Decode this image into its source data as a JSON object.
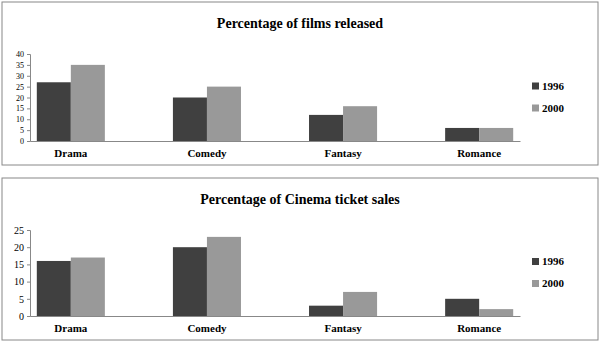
{
  "chart_data": [
    {
      "type": "bar",
      "title": "Percentage of films released",
      "categories": [
        "Drama",
        "Comedy",
        "Fantasy",
        "Romance"
      ],
      "series": [
        {
          "name": "1996",
          "color": "#404040",
          "values": [
            27,
            20,
            12,
            6
          ]
        },
        {
          "name": "2000",
          "color": "#999999",
          "values": [
            35,
            25,
            16,
            6
          ]
        }
      ],
      "ylim": [
        0,
        40
      ],
      "yticks": [
        0,
        5,
        10,
        15,
        20,
        25,
        30,
        35,
        40
      ],
      "grid": false,
      "legend": "right"
    },
    {
      "type": "bar",
      "title": "Percentage of Cinema ticket sales",
      "categories": [
        "Drama",
        "Comedy",
        "Fantasy",
        "Romance"
      ],
      "series": [
        {
          "name": "1996",
          "color": "#404040",
          "values": [
            16,
            20,
            3,
            5
          ]
        },
        {
          "name": "2000",
          "color": "#999999",
          "values": [
            17,
            23,
            7,
            2
          ]
        }
      ],
      "ylim": [
        0,
        25
      ],
      "yticks": [
        0,
        5,
        10,
        15,
        20,
        25
      ],
      "grid": false,
      "legend": "right"
    }
  ]
}
